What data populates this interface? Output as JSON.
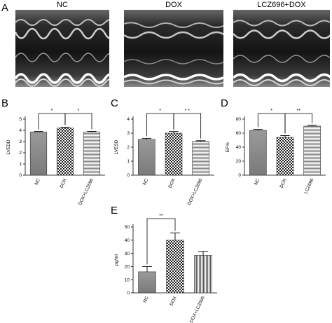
{
  "panel_a": {
    "letter": "A",
    "titles": [
      "NC",
      "DOX",
      "LCZ696+DOX"
    ]
  },
  "chart_data": [
    {
      "panel": "B",
      "type": "bar",
      "categories": [
        "NC",
        "DOX",
        "DOX+LCZ696"
      ],
      "values": [
        3.85,
        4.2,
        3.85
      ],
      "errors": [
        0.05,
        0.08,
        0.06
      ],
      "patterns": [
        "gray-gradient",
        "checker",
        "hlines"
      ],
      "ylabel": "LVEDD",
      "ylim": [
        0,
        5
      ],
      "yticks": [
        "0",
        "1",
        "2",
        "3",
        "4",
        "5"
      ],
      "significance": [
        {
          "from": 0,
          "to": 1,
          "label": "*"
        },
        {
          "from": 1,
          "to": 2,
          "label": "*"
        }
      ]
    },
    {
      "panel": "C",
      "type": "bar",
      "categories": [
        "NC",
        "DOX",
        "DOX+LCZ696"
      ],
      "values": [
        2.55,
        3.0,
        2.4
      ],
      "errors": [
        0.08,
        0.12,
        0.06
      ],
      "patterns": [
        "gray-gradient",
        "checker",
        "hlines"
      ],
      "ylabel": "LVESD",
      "ylim": [
        0,
        4
      ],
      "yticks": [
        "0",
        "1",
        "2",
        "3",
        "4"
      ],
      "significance": [
        {
          "from": 0,
          "to": 1,
          "label": "*"
        },
        {
          "from": 1,
          "to": 2,
          "label": "* *"
        }
      ]
    },
    {
      "panel": "D",
      "type": "bar",
      "categories": [
        "NC",
        "DOX",
        "LCZ696"
      ],
      "values": [
        64,
        54,
        70
      ],
      "errors": [
        1.5,
        2.5,
        1.2
      ],
      "patterns": [
        "gray-gradient",
        "checker",
        "hlines"
      ],
      "ylabel": "EF%",
      "ylim": [
        0,
        80
      ],
      "yticks": [
        "0",
        "20",
        "40",
        "60",
        "80"
      ],
      "significance": [
        {
          "from": 0,
          "to": 1,
          "label": "*"
        },
        {
          "from": 1,
          "to": 2,
          "label": "**"
        }
      ]
    },
    {
      "panel": "E",
      "type": "bar",
      "categories": [
        "NC",
        "DOX",
        "DOX+LCZ696"
      ],
      "values": [
        16,
        40,
        28.5
      ],
      "errors": [
        4,
        5.5,
        3
      ],
      "patterns": [
        "gray-gradient",
        "checker",
        "vlines"
      ],
      "ylabel": "pg/ml",
      "ylim": [
        0,
        50
      ],
      "yticks": [
        "0",
        "10",
        "20",
        "30",
        "40",
        "50"
      ],
      "significance": [
        {
          "from": 0,
          "to": 1,
          "label": "**"
        }
      ]
    }
  ]
}
